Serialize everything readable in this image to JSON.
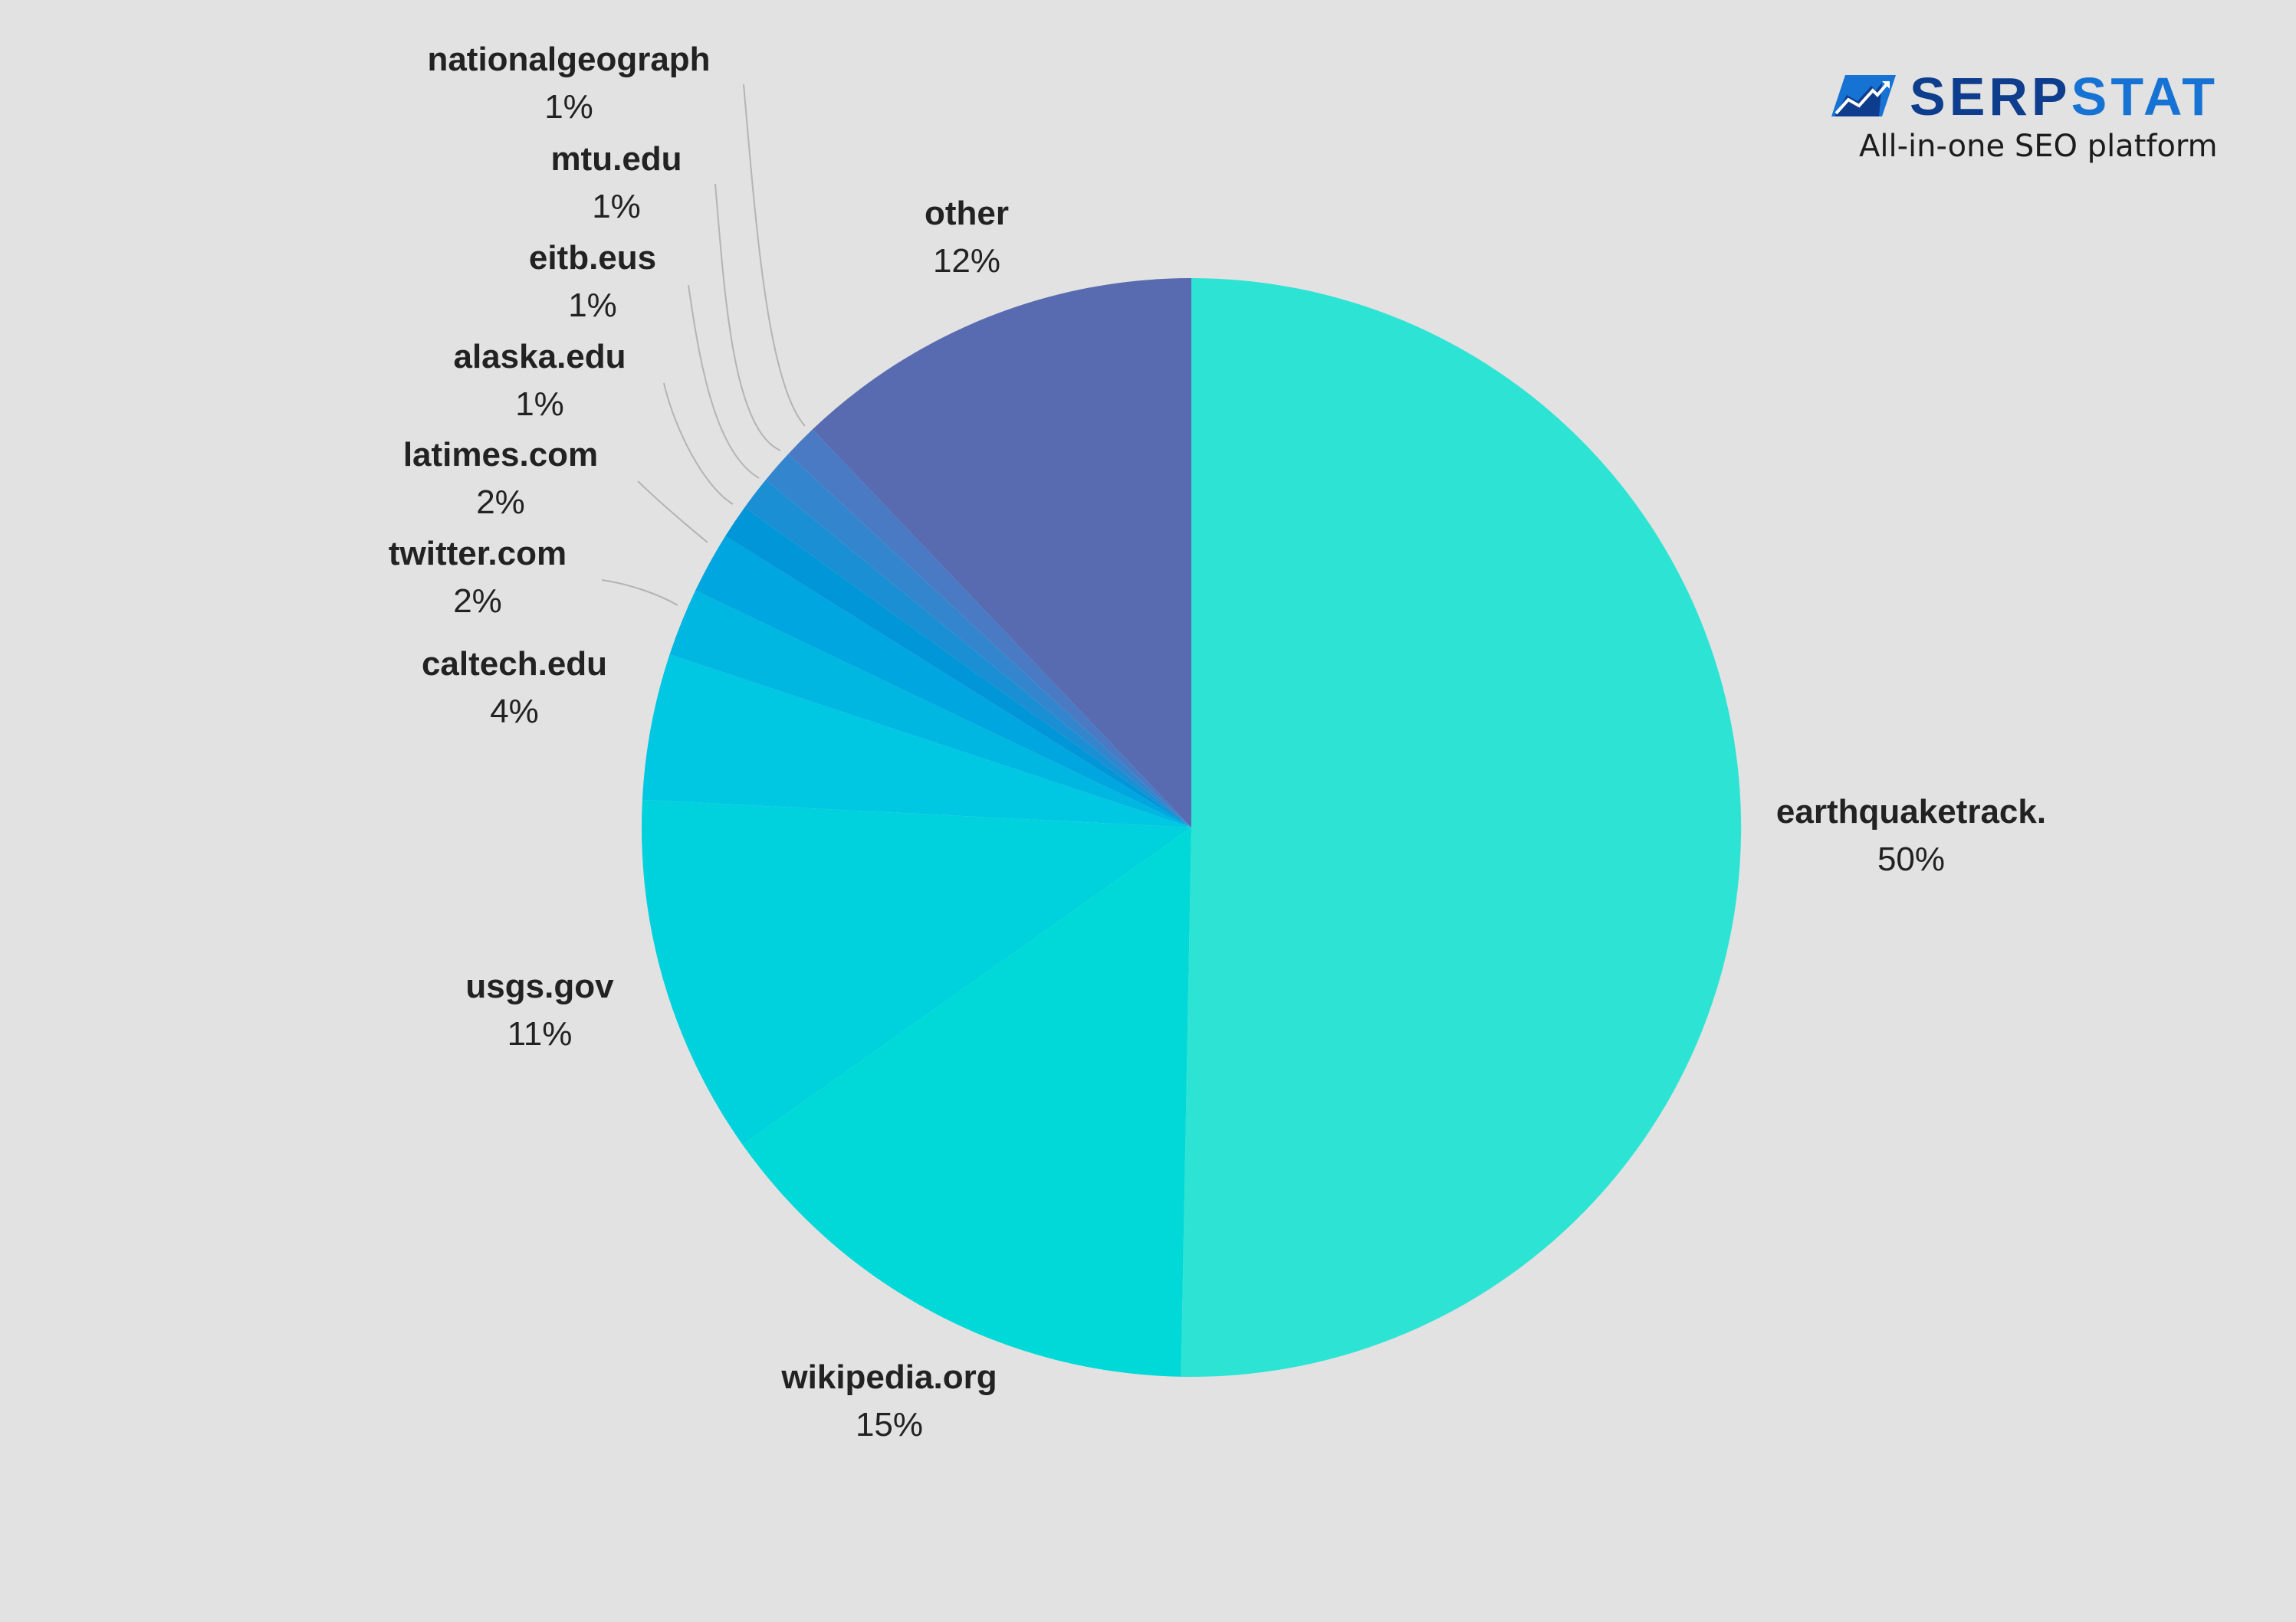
{
  "brand": {
    "name_part1": "SERP",
    "name_part2": "STAT",
    "tagline": "All-in-one SEO platform",
    "logo_icon": "serpstat-logo-icon",
    "colors": {
      "dark": "#0d3d8c",
      "light": "#1673d4"
    }
  },
  "chart_data": {
    "type": "pie",
    "title": "",
    "background": "#e2e2e2",
    "start_angle": "12 o'clock",
    "direction": "clockwise",
    "slices": [
      {
        "label": "earthquaketrack.",
        "value": 50.3,
        "display": "50%",
        "color": "#2de4d4"
      },
      {
        "label": "wikipedia.org",
        "value": 14.9,
        "display": "15%",
        "color": "#00d9d7"
      },
      {
        "label": "usgs.gov",
        "value": 10.6,
        "display": "11%",
        "color": "#00d2dd"
      },
      {
        "label": "caltech.edu",
        "value": 4.3,
        "display": "4%",
        "color": "#00c8e2"
      },
      {
        "label": "twitter.com",
        "value": 2.0,
        "display": "2%",
        "color": "#00b7e2"
      },
      {
        "label": "latimes.com",
        "value": 1.8,
        "display": "2%",
        "color": "#00a6df"
      },
      {
        "label": "alaska.edu",
        "value": 1.0,
        "display": "1%",
        "color": "#0096d8"
      },
      {
        "label": "eitb.eus",
        "value": 1.0,
        "display": "1%",
        "color": "#1a8fd4"
      },
      {
        "label": "mtu.edu",
        "value": 1.0,
        "display": "1%",
        "color": "#3386cd"
      },
      {
        "label": "nationalgeograph",
        "value": 1.0,
        "display": "1%",
        "color": "#4a7ac4"
      },
      {
        "label": "other",
        "value": 12.1,
        "display": "12%",
        "color": "#586bb1"
      }
    ]
  }
}
